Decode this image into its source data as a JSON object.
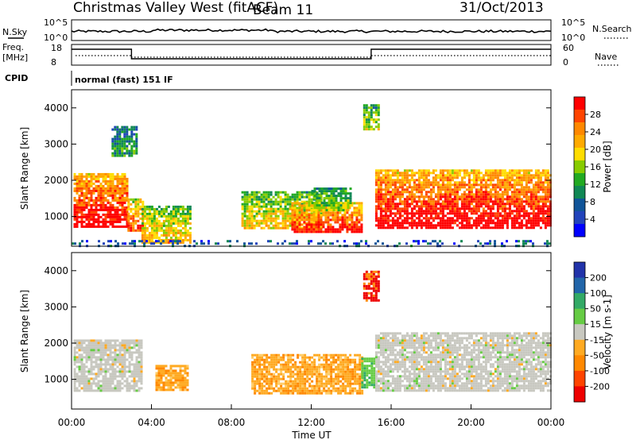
{
  "header": {
    "title": "Christmas Valley West (fitACF)",
    "beam": "Beam 11",
    "date": "31/Oct/2013"
  },
  "params": {
    "nsky_label": "N.Sky",
    "nsearch_label": "N.Search",
    "freq_label_1": "Freq.",
    "freq_label_2": "[MHz]",
    "nave_label": "Nave",
    "cpid_label": "CPID",
    "cpid_value": "normal (fast) 151 IF",
    "noise_ticks_left": [
      "10^5",
      "10^0"
    ],
    "noise_ticks_right": [
      "10^5",
      "10^0"
    ],
    "freq_ticks": [
      "18",
      "8"
    ],
    "nave_ticks": [
      "60",
      "0"
    ]
  },
  "chart_data": [
    {
      "type": "heatmap",
      "name": "power",
      "ylabel": "Slant Range [km]",
      "xlabel": "Time UT",
      "xlim": [
        0,
        24
      ],
      "ylim": [
        180,
        4500
      ],
      "y_ticks": [
        1000,
        2000,
        3000,
        4000
      ],
      "colorbar_label": "Power [dB]",
      "colorbar_ticks": [
        "28",
        "24",
        "20",
        "16",
        "12",
        "8",
        "4"
      ],
      "colorbar_colors": [
        "#ff0000",
        "#ff4400",
        "#ff8800",
        "#ffaa00",
        "#ffdd00",
        "#88cc00",
        "#22aa22",
        "#118855",
        "#115599",
        "#2244bb",
        "#0000ff"
      ],
      "regions": [
        {
          "t": [
            0.1,
            2.8
          ],
          "r": [
            700,
            2200
          ],
          "level": 0.95
        },
        {
          "t": [
            2.8,
            3.6
          ],
          "r": [
            600,
            1500
          ],
          "level": 0.8
        },
        {
          "t": [
            3.5,
            6.0
          ],
          "r": [
            300,
            1300
          ],
          "level": 0.6
        },
        {
          "t": [
            8.5,
            12.5
          ],
          "r": [
            700,
            1700
          ],
          "level": 0.55
        },
        {
          "t": [
            11.0,
            14.5
          ],
          "r": [
            600,
            1400
          ],
          "level": 0.85
        },
        {
          "t": [
            12.0,
            14.0
          ],
          "r": [
            1200,
            1800
          ],
          "level": 0.45
        },
        {
          "t": [
            14.6,
            15.4
          ],
          "r": [
            3400,
            4100
          ],
          "level": 0.5
        },
        {
          "t": [
            15.2,
            24.0
          ],
          "r": [
            700,
            2300
          ],
          "level": 0.95
        },
        {
          "t": [
            2.0,
            3.2
          ],
          "r": [
            2700,
            3500
          ],
          "level": 0.3
        },
        {
          "t": [
            0.0,
            24.0
          ],
          "r": [
            180,
            350
          ],
          "level": 0.2
        }
      ]
    },
    {
      "type": "heatmap",
      "name": "velocity",
      "ylabel": "Slant Range [km]",
      "xlabel": "Time UT",
      "xlim": [
        0,
        24
      ],
      "ylim": [
        180,
        4500
      ],
      "y_ticks": [
        1000,
        2000,
        3000,
        4000
      ],
      "x_ticks": [
        "00:00",
        "04:00",
        "08:00",
        "12:00",
        "16:00",
        "20:00",
        "00:00"
      ],
      "colorbar_label": "Velocity [m s-1]",
      "colorbar_ticks": [
        "200",
        "100",
        "50",
        "15",
        "-15",
        "-50",
        "-100",
        "-200"
      ],
      "colorbar_colors": [
        "#2233aa",
        "#2266aa",
        "#33aa66",
        "#66cc44",
        "#c8c8c0",
        "#ffaa22",
        "#ff8800",
        "#ff4400",
        "#ee0000"
      ],
      "regions": [
        {
          "t": [
            0.1,
            3.5
          ],
          "r": [
            700,
            2100
          ],
          "v": "ground"
        },
        {
          "t": [
            4.2,
            5.8
          ],
          "r": [
            700,
            1400
          ],
          "v": -60
        },
        {
          "t": [
            9.0,
            14.5
          ],
          "r": [
            600,
            1700
          ],
          "v": -60
        },
        {
          "t": [
            14.5,
            15.2
          ],
          "r": [
            800,
            1600
          ],
          "v": 20
        },
        {
          "t": [
            14.6,
            15.4
          ],
          "r": [
            3200,
            4000
          ],
          "v": -150
        },
        {
          "t": [
            15.2,
            24.0
          ],
          "r": [
            700,
            2300
          ],
          "v": "ground"
        }
      ]
    }
  ]
}
